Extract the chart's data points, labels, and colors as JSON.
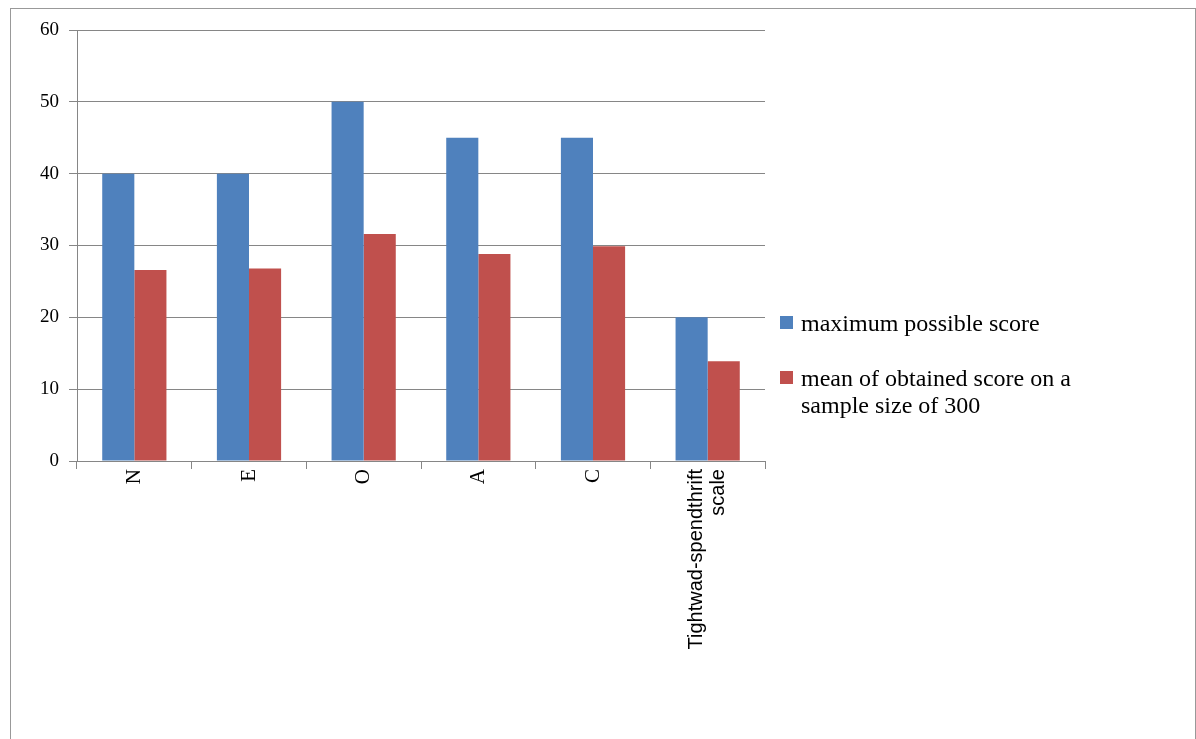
{
  "chart_data": {
    "type": "bar",
    "categories": [
      "N",
      "E",
      "O",
      "A",
      "C",
      "Tightwad-spendthrift scale"
    ],
    "series": [
      {
        "name": "maximum possible score",
        "color": "#4f81bd",
        "values": [
          40,
          40,
          50,
          45,
          45,
          20
        ]
      },
      {
        "name": "mean of obtained score on a sample size of 300",
        "color": "#c0504d",
        "values": [
          26.6,
          26.8,
          31.6,
          28.8,
          29.9,
          13.9
        ]
      }
    ],
    "ylim": [
      0,
      60
    ],
    "yticks": [
      0,
      10,
      20,
      30,
      40,
      50,
      60
    ],
    "grid": "y",
    "legend": "right"
  }
}
